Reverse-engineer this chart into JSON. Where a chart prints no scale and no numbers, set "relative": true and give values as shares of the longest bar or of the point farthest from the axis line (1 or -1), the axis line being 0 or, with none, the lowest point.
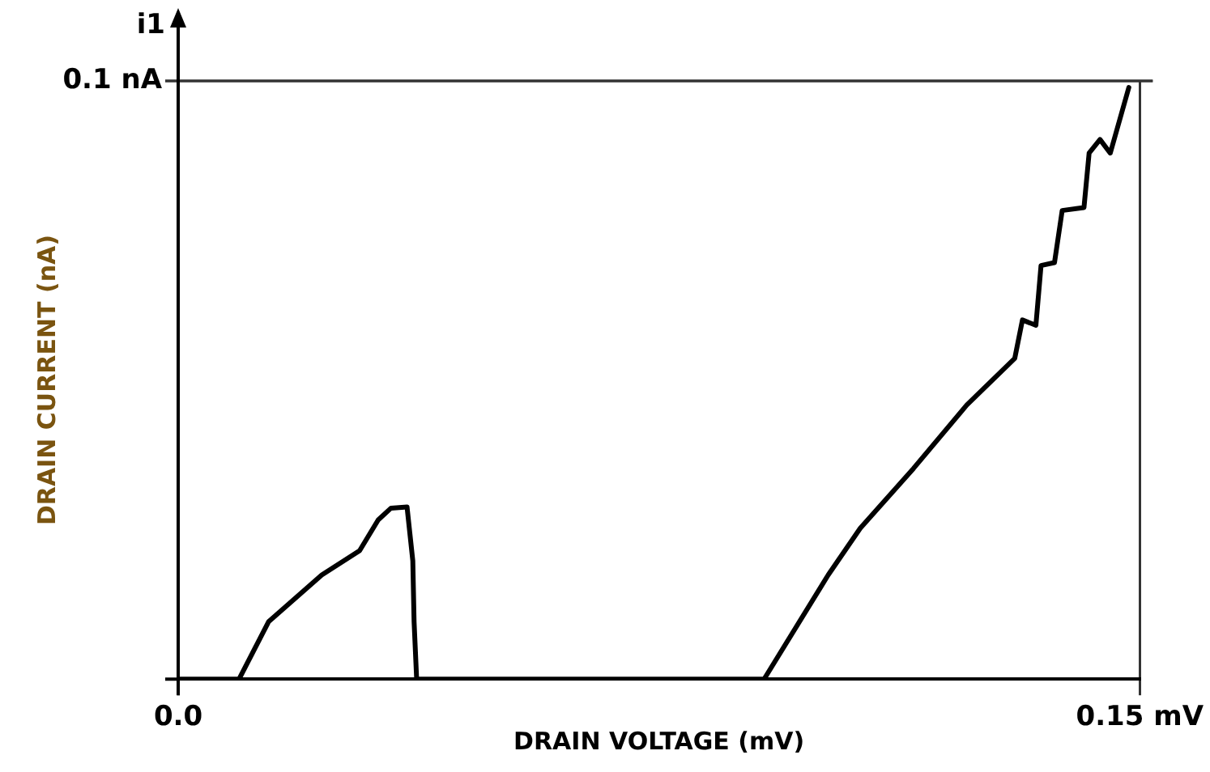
{
  "chart_data": {
    "type": "line",
    "xlabel": "DRAIN VOLTAGE (mV)",
    "ylabel": "DRAIN CURRENT (nA)",
    "annotations": [
      "i1"
    ],
    "x": [
      0,
      0.0095,
      0.0141,
      0.0224,
      0.0283,
      0.0312,
      0.0332,
      0.0357,
      0.0366,
      0.0368,
      0.0372,
      0.0914,
      0.1014,
      0.1064,
      0.1147,
      0.123,
      0.1305,
      0.1317,
      0.1338,
      0.1346,
      0.1367,
      0.1379,
      0.1413,
      0.1421,
      0.1438,
      0.1454,
      0.1483
    ],
    "series": [
      {
        "color": "#000000",
        "values": [
          0,
          0,
          0.097,
          0.176,
          0.217,
          0.269,
          0.289,
          0.291,
          0.2,
          0.097,
          0,
          0,
          0.176,
          0.255,
          0.356,
          0.463,
          0.542,
          0.607,
          0.598,
          0.699,
          0.704,
          0.792,
          0.797,
          0.889,
          0.912,
          0.889,
          1
        ]
      }
    ],
    "relative": true,
    "ref_lines": [
      {
        "axis": "y",
        "value": 1.011,
        "label": "0.1 nA"
      }
    ],
    "xlim": [
      0,
      0.15
    ],
    "xticks": [
      {
        "value": 0,
        "label": "0.0"
      },
      {
        "value": 0.15,
        "label": "0.15 mV"
      }
    ],
    "grid": "x",
    "marker": "none",
    "line_style": "solid",
    "legend": false
  }
}
